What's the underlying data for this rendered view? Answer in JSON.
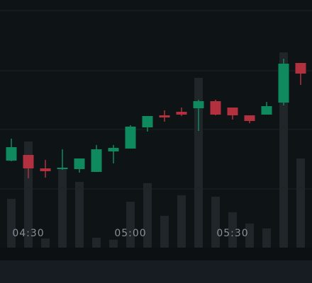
{
  "chart_data": {
    "type": "candlestick",
    "categories": [
      null,
      "04:30",
      null,
      null,
      null,
      null,
      null,
      "05:00",
      null,
      null,
      null,
      null,
      null,
      "05:30",
      null,
      null,
      null,
      null
    ],
    "open": [
      123,
      131,
      112,
      111,
      111,
      107,
      136,
      140,
      170,
      187,
      192,
      197,
      207,
      198,
      187,
      188,
      205,
      261
    ],
    "high": [
      154,
      131,
      124,
      139,
      126,
      145,
      145,
      173,
      186,
      194,
      198,
      209,
      209,
      198,
      187,
      206,
      267,
      261
    ],
    "low": [
      122,
      98,
      99,
      110,
      106,
      107,
      119,
      140,
      164,
      178,
      186,
      165,
      187,
      181,
      176,
      188,
      201,
      230
    ],
    "close": [
      142,
      112,
      108,
      113,
      126,
      139,
      141,
      171,
      186,
      184,
      188,
      207,
      188,
      187,
      179,
      200,
      260,
      246
    ],
    "volume": [
      69,
      150,
      13,
      113,
      93,
      14,
      11,
      65,
      91,
      45,
      74,
      240,
      72,
      50,
      34,
      27,
      276,
      126
    ],
    "ylim": [
      0,
      350
    ],
    "y2lim": [
      0,
      350
    ],
    "gridlines": [
      83,
      167,
      250,
      335
    ],
    "grid": true,
    "up_color": "#0f8a5f",
    "down_color": "#b3303e",
    "volume_color": "#1f2529"
  }
}
